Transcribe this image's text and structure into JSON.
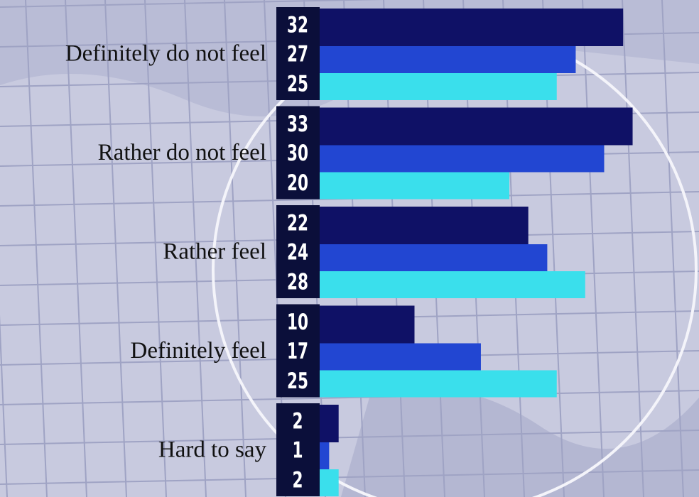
{
  "chart_data": {
    "type": "bar",
    "orientation": "horizontal",
    "categories": [
      "Definitely do not feel",
      "Rather do not feel",
      "Rather feel",
      "Definitely feel",
      "Hard to say"
    ],
    "series": [
      {
        "color": "#0f1166",
        "values": [
          32,
          33,
          22,
          10,
          2
        ]
      },
      {
        "color": "#2246d2",
        "values": [
          27,
          30,
          24,
          17,
          1
        ]
      },
      {
        "color": "#3adfec",
        "values": [
          25,
          20,
          28,
          25,
          2
        ]
      }
    ]
  }
}
